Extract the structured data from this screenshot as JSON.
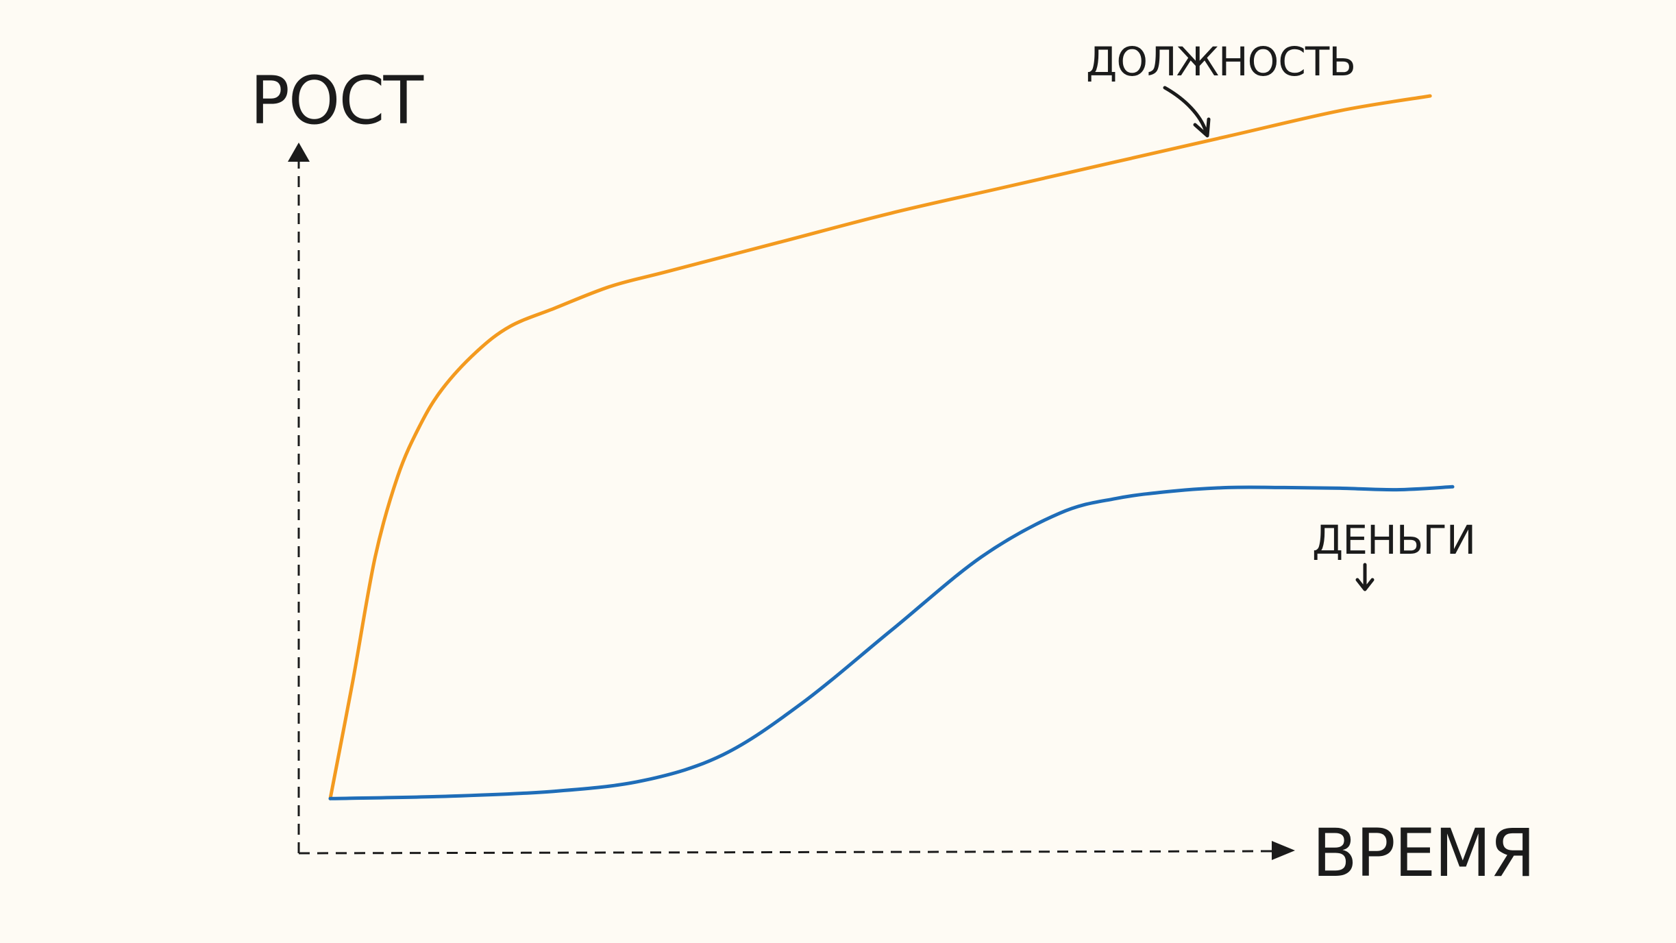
{
  "chart_data": {
    "type": "line",
    "title": "",
    "xlabel": "ВРЕМЯ",
    "ylabel": "РОСТ",
    "xlim": [
      0,
      100
    ],
    "ylim": [
      0,
      100
    ],
    "grid": false,
    "legend": "inline labels",
    "series": [
      {
        "name": "ДОЛЖНОСТЬ",
        "color": "#f39a1f",
        "x": [
          0,
          2,
          4,
          6,
          8,
          10,
          13,
          16,
          20,
          25,
          30,
          40,
          50,
          60,
          70,
          80,
          90,
          98
        ],
        "y": [
          4,
          20,
          37,
          48,
          55,
          60,
          65,
          68.5,
          71,
          74,
          76,
          80,
          84,
          87.5,
          91,
          94.5,
          98,
          100
        ]
      },
      {
        "name": "ДЕНЬГИ",
        "color": "#1f6db8",
        "x": [
          0,
          10,
          20,
          28,
          35,
          42,
          50,
          58,
          65,
          70,
          75,
          80,
          85,
          90,
          95,
          100
        ],
        "y": [
          4,
          4.3,
          5,
          6.5,
          10,
          17,
          27,
          37,
          43,
          45,
          46,
          46.5,
          46.5,
          46.4,
          46.2,
          46.6
        ]
      }
    ],
    "annotations": [
      "ДОЛЖНОСТЬ",
      "ДЕНЬГИ"
    ]
  }
}
